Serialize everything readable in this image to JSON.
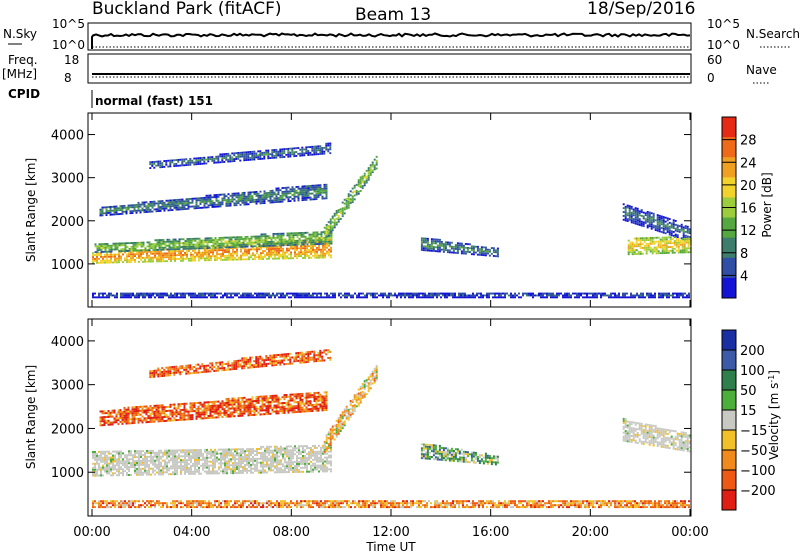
{
  "header": {
    "station": "Buckland Park (fitACF)",
    "beam": "Beam 13",
    "date": "18/Sep/2016"
  },
  "summary_panels": {
    "nsky_label": "N.Sky",
    "nsky_ticks": [
      "10^5",
      "10^0"
    ],
    "nsearch_label": "N.Search",
    "nsearch_ticks": [
      "10^5",
      "10^0"
    ],
    "freq_label": "Freq.",
    "freq_unit": "[MHz]",
    "freq_ticks": [
      "18",
      "8"
    ],
    "nave_label": "Nave",
    "nave_ticks": [
      "60",
      "0"
    ],
    "cpid_label": "CPID",
    "cpid_value": "normal (fast) 151"
  },
  "chart_data": [
    {
      "type": "heatmap",
      "name": "power",
      "ylabel": "Slant Range [km]",
      "xlabel": "",
      "yticks": [
        "1000",
        "2000",
        "3000",
        "4000"
      ],
      "ylim": [
        0,
        4500
      ],
      "colorbar_label": "Power [dB]",
      "colorbar_ticks": [
        "4",
        "8",
        "12",
        "16",
        "20",
        "24",
        "28"
      ],
      "colorbar_colors": [
        "#1414d6",
        "#2f4fa6",
        "#3c7d6c",
        "#55a83f",
        "#9ccd3c",
        "#f1d32c",
        "#f0a020",
        "#ee6a18",
        "#e62a14"
      ],
      "colorbar_range": [
        0,
        32
      ],
      "bands": [
        {
          "x": [
            0,
            9.6
          ],
          "y0": [
            1000,
            1130
          ],
          "h": [
            250,
            440
          ],
          "v": 26
        },
        {
          "x": [
            0.1,
            9.6
          ],
          "y0": [
            1250,
            1450
          ],
          "h": [
            200,
            300
          ],
          "v": 16
        },
        {
          "x": [
            0.3,
            9.4
          ],
          "y0": [
            2100,
            2500
          ],
          "h": [
            200,
            350
          ],
          "v": 10
        },
        {
          "x": [
            2.3,
            9.6
          ],
          "y0": [
            3200,
            3550
          ],
          "h": [
            150,
            230
          ],
          "v": 8
        },
        {
          "x": [
            9.3,
            11.4
          ],
          "y0": [
            1500,
            3200
          ],
          "h": [
            350,
            300
          ],
          "v": 16
        },
        {
          "x": [
            13.2,
            16.3
          ],
          "y0": [
            1300,
            1150
          ],
          "h": [
            300,
            180
          ],
          "v": 10
        },
        {
          "x": [
            21.3,
            24
          ],
          "y0": [
            2000,
            1500
          ],
          "h": [
            400,
            350
          ],
          "v": 8
        },
        {
          "x": [
            21.5,
            24
          ],
          "y0": [
            1200,
            1250
          ],
          "h": [
            400,
            350
          ],
          "v": 22
        },
        {
          "x": [
            0,
            24
          ],
          "y0": [
            200,
            200
          ],
          "h": [
            120,
            120
          ],
          "v": 6
        }
      ]
    },
    {
      "type": "heatmap",
      "name": "velocity",
      "ylabel": "Slant Range [km]",
      "xlabel": "Time UT",
      "xticks": [
        "00:00",
        "04:00",
        "08:00",
        "12:00",
        "16:00",
        "20:00",
        "00:00"
      ],
      "yticks": [
        "1000",
        "2000",
        "3000",
        "4000"
      ],
      "ylim": [
        0,
        4500
      ],
      "colorbar_label": "Velocity [m s^-1]",
      "colorbar_ticks": [
        "200",
        "100",
        "50",
        "15",
        "-15",
        "-50",
        "-100",
        "-200"
      ],
      "colorbar_colors": [
        "#1a2fa3",
        "#3b5aa8",
        "#2e7f4c",
        "#4caf3a",
        "#c9c9c4",
        "#f2c029",
        "#f08a1c",
        "#ee5a16",
        "#e01e14"
      ],
      "bands": [
        {
          "x": [
            0,
            9.6
          ],
          "y0": [
            900,
            1000
          ],
          "h": [
            550,
            600
          ],
          "v": 4
        },
        {
          "x": [
            0.3,
            9.4
          ],
          "y0": [
            2050,
            2400
          ],
          "h": [
            350,
            450
          ],
          "v": 7
        },
        {
          "x": [
            2.3,
            9.6
          ],
          "y0": [
            3150,
            3550
          ],
          "h": [
            200,
            250
          ],
          "v": 7
        },
        {
          "x": [
            9.3,
            11.4
          ],
          "y0": [
            1400,
            3100
          ],
          "h": [
            400,
            350
          ],
          "v": 5
        },
        {
          "x": [
            13.2,
            16.3
          ],
          "y0": [
            1300,
            1150
          ],
          "h": [
            350,
            200
          ],
          "v": 3
        },
        {
          "x": [
            21.3,
            24
          ],
          "y0": [
            1700,
            1450
          ],
          "h": [
            500,
            400
          ],
          "v": 4
        },
        {
          "x": [
            0,
            24
          ],
          "y0": [
            180,
            180
          ],
          "h": [
            140,
            140
          ],
          "v": 6
        }
      ]
    }
  ]
}
